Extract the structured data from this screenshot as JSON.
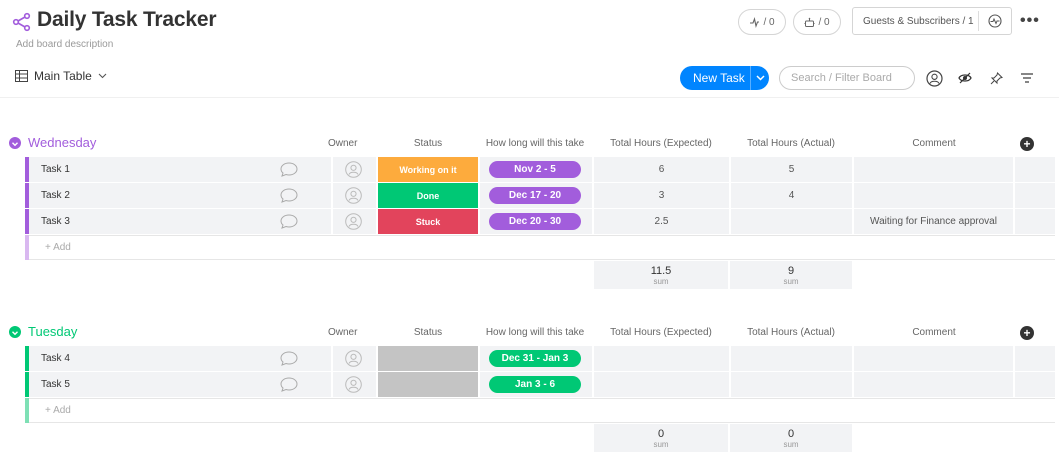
{
  "board": {
    "title": "Daily Task Tracker",
    "description": "Add board description",
    "accent": "#a25ddc"
  },
  "header": {
    "activity_count": "/ 0",
    "bots_count": "/ 0",
    "guests_label": "Guests & Subscribers / 1",
    "more_label": "•••"
  },
  "toolbar": {
    "view_label": "Main Table",
    "new_task_label": "New Task",
    "search_placeholder": "Search / Filter Board"
  },
  "columns": {
    "owner": "Owner",
    "status": "Status",
    "timeline": "How long will this take",
    "expected": "Total Hours (Expected)",
    "actual": "Total Hours (Actual)",
    "comment": "Comment"
  },
  "colors": {
    "working": "#fdab3d",
    "done": "#00c875",
    "stuck": "#e2445c",
    "empty_status": "#c4c4c4",
    "purple": "#a25ddc",
    "green": "#00c875"
  },
  "groups": [
    {
      "name": "Wednesday",
      "color": "#a25ddc",
      "add_label": "+ Add",
      "rows": [
        {
          "name": "Task 1",
          "status": "Working on it",
          "status_color": "#fdab3d",
          "timeline": "Nov 2 - 5",
          "expected": "6",
          "actual": "5",
          "comment": ""
        },
        {
          "name": "Task 2",
          "status": "Done",
          "status_color": "#00c875",
          "timeline": "Dec 17 - 20",
          "expected": "3",
          "actual": "4",
          "comment": ""
        },
        {
          "name": "Task 3",
          "status": "Stuck",
          "status_color": "#e2445c",
          "timeline": "Dec 20 - 30",
          "expected": "2.5",
          "actual": "",
          "comment": "Waiting for Finance approval"
        }
      ],
      "sum_expected": "11.5",
      "sum_actual": "9",
      "sum_label": "sum"
    },
    {
      "name": "Tuesday",
      "color": "#00c875",
      "add_label": "+ Add",
      "rows": [
        {
          "name": "Task 4",
          "status": "",
          "status_color": "#c4c4c4",
          "timeline": "Dec 31 - Jan 3",
          "expected": "",
          "actual": "",
          "comment": ""
        },
        {
          "name": "Task 5",
          "status": "",
          "status_color": "#c4c4c4",
          "timeline": "Jan 3 - 6",
          "expected": "",
          "actual": "",
          "comment": ""
        }
      ],
      "sum_expected": "0",
      "sum_actual": "0",
      "sum_label": "sum"
    }
  ]
}
